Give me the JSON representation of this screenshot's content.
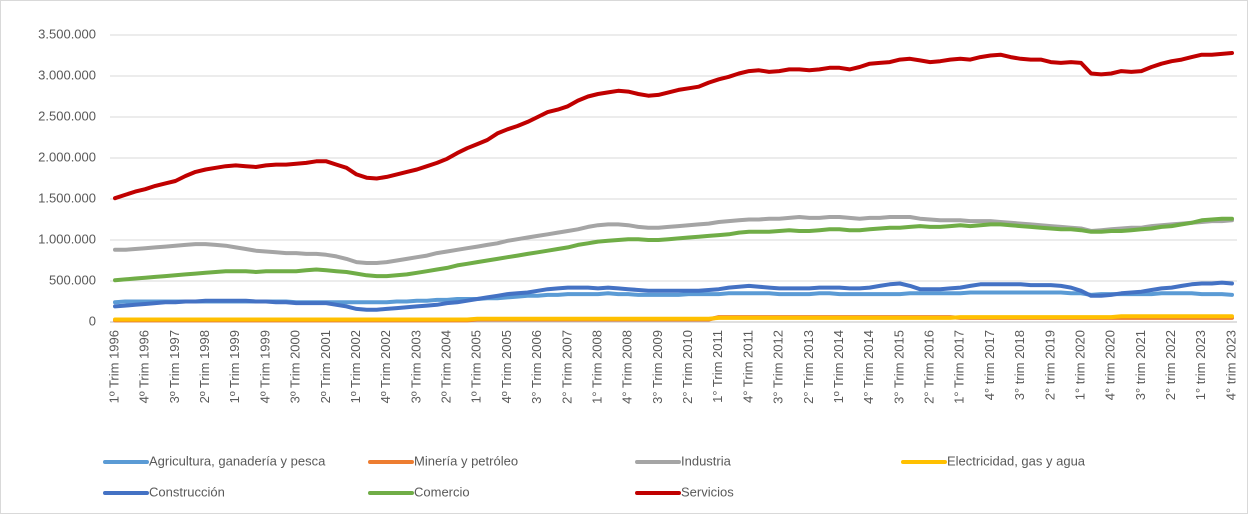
{
  "chart_data": {
    "type": "line",
    "categories": [
      "1º Trim 1996",
      null,
      null,
      "4º Trim 1996",
      null,
      null,
      "3º Trim 1997",
      null,
      null,
      "2º Trim 1998",
      null,
      null,
      "1º Trim 1999",
      null,
      null,
      "4º Trim 1999",
      null,
      null,
      "3º Trim 2000",
      null,
      null,
      "2º Trim 2001",
      null,
      null,
      "1º Trim 2002",
      null,
      null,
      "4º Trim 2002",
      null,
      null,
      "3º Trim 2003",
      null,
      null,
      "2º Trim 2004",
      null,
      null,
      "1º Trim 2005",
      null,
      null,
      "4º Trim 2005",
      null,
      null,
      "3° Trim 2006",
      null,
      null,
      "2° Trim 2007",
      null,
      null,
      "1° Trim 2008",
      null,
      null,
      "4° Trim 2008",
      null,
      null,
      "3° Trim 2009",
      null,
      null,
      "2° Trim 2010",
      null,
      null,
      "1° Trim 2011",
      null,
      null,
      "4° Trim 2011",
      null,
      null,
      "3° Trim 2012",
      null,
      null,
      "2° Trim 2013",
      null,
      null,
      "1º Trim 2014",
      null,
      null,
      "4° Trim 2014",
      null,
      null,
      "3° Trim 2015",
      null,
      null,
      "2° Trim 2016",
      null,
      null,
      "1° Trim 2017",
      null,
      null,
      "4° trim 2017",
      null,
      null,
      "3° trim 2018",
      null,
      null,
      "2° trim 2019",
      null,
      null,
      "1° trim 2020",
      null,
      null,
      "4° trim 2020",
      null,
      null,
      "3° trim 2021",
      null,
      null,
      "2° trim 2022",
      null,
      null,
      "1° trim 2023",
      null,
      null,
      "4° trim 2023"
    ],
    "ylim": [
      0,
      3500000
    ],
    "yticks": [
      0,
      {
        "value": 500000,
        "label": "500.000"
      },
      {
        "value": 1000000,
        "label": "1.000.000"
      },
      {
        "value": 1500000,
        "label": "1.500.000"
      },
      {
        "value": 2000000,
        "label": "2.000.000"
      },
      {
        "value": 2500000,
        "label": "2.500.000"
      },
      {
        "value": 3000000,
        "label": "3.000.000"
      },
      {
        "value": 3500000,
        "label": "3.500.000"
      }
    ],
    "grid": true,
    "legend": "bottom",
    "series": [
      {
        "name": "Agricultura, ganadería y pesca",
        "color": "#5b9bd5",
        "values": [
          240000,
          250000,
          250000,
          250000,
          250000,
          250000,
          250000,
          250000,
          250000,
          250000,
          250000,
          250000,
          250000,
          250000,
          250000,
          250000,
          250000,
          250000,
          240000,
          240000,
          240000,
          240000,
          240000,
          240000,
          240000,
          240000,
          240000,
          240000,
          250000,
          250000,
          260000,
          260000,
          270000,
          270000,
          280000,
          280000,
          280000,
          290000,
          290000,
          300000,
          310000,
          320000,
          320000,
          330000,
          330000,
          340000,
          340000,
          340000,
          340000,
          350000,
          340000,
          340000,
          330000,
          330000,
          330000,
          330000,
          330000,
          340000,
          340000,
          340000,
          340000,
          350000,
          350000,
          350000,
          350000,
          350000,
          340000,
          340000,
          340000,
          340000,
          350000,
          350000,
          340000,
          340000,
          340000,
          340000,
          340000,
          340000,
          340000,
          350000,
          350000,
          350000,
          350000,
          350000,
          350000,
          360000,
          360000,
          360000,
          360000,
          360000,
          360000,
          360000,
          360000,
          360000,
          360000,
          350000,
          350000,
          330000,
          340000,
          340000,
          340000,
          340000,
          340000,
          340000,
          350000,
          350000,
          350000,
          350000,
          340000,
          340000,
          340000,
          330000
        ]
      },
      {
        "name": "Minería y petróleo",
        "color": "#ed7d31",
        "values": [
          20000,
          20000,
          20000,
          20000,
          20000,
          20000,
          20000,
          20000,
          20000,
          20000,
          20000,
          20000,
          20000,
          20000,
          20000,
          20000,
          20000,
          20000,
          20000,
          20000,
          20000,
          20000,
          20000,
          20000,
          20000,
          20000,
          20000,
          20000,
          20000,
          20000,
          20000,
          20000,
          20000,
          20000,
          20000,
          20000,
          30000,
          30000,
          30000,
          30000,
          30000,
          30000,
          30000,
          30000,
          30000,
          30000,
          30000,
          30000,
          30000,
          30000,
          30000,
          30000,
          30000,
          30000,
          30000,
          30000,
          30000,
          30000,
          30000,
          30000,
          60000,
          60000,
          60000,
          60000,
          60000,
          60000,
          60000,
          60000,
          60000,
          60000,
          60000,
          60000,
          60000,
          60000,
          60000,
          60000,
          60000,
          60000,
          60000,
          60000,
          60000,
          60000,
          60000,
          60000,
          50000,
          50000,
          50000,
          50000,
          50000,
          50000,
          50000,
          50000,
          50000,
          50000,
          50000,
          50000,
          50000,
          50000,
          50000,
          50000,
          50000,
          50000,
          50000,
          50000,
          50000,
          50000,
          50000,
          50000,
          50000,
          50000,
          50000,
          50000
        ]
      },
      {
        "name": "Industria",
        "color": "#a5a5a5",
        "values": [
          880000,
          880000,
          890000,
          900000,
          910000,
          920000,
          930000,
          940000,
          950000,
          950000,
          940000,
          930000,
          910000,
          890000,
          870000,
          860000,
          850000,
          840000,
          840000,
          830000,
          830000,
          820000,
          800000,
          770000,
          730000,
          720000,
          720000,
          730000,
          750000,
          770000,
          790000,
          810000,
          840000,
          860000,
          880000,
          900000,
          920000,
          940000,
          960000,
          990000,
          1010000,
          1030000,
          1050000,
          1070000,
          1090000,
          1110000,
          1130000,
          1160000,
          1180000,
          1190000,
          1190000,
          1180000,
          1160000,
          1150000,
          1150000,
          1160000,
          1170000,
          1180000,
          1190000,
          1200000,
          1220000,
          1230000,
          1240000,
          1250000,
          1250000,
          1260000,
          1260000,
          1270000,
          1280000,
          1270000,
          1270000,
          1280000,
          1280000,
          1270000,
          1260000,
          1270000,
          1270000,
          1280000,
          1280000,
          1280000,
          1260000,
          1250000,
          1240000,
          1240000,
          1240000,
          1230000,
          1230000,
          1230000,
          1220000,
          1210000,
          1200000,
          1190000,
          1180000,
          1170000,
          1160000,
          1150000,
          1140000,
          1110000,
          1120000,
          1130000,
          1140000,
          1150000,
          1150000,
          1170000,
          1180000,
          1190000,
          1200000,
          1210000,
          1220000,
          1230000,
          1230000,
          1240000
        ]
      },
      {
        "name": "Electricidad, gas y agua",
        "color": "#ffc000",
        "values": [
          30000,
          30000,
          30000,
          30000,
          30000,
          30000,
          30000,
          30000,
          30000,
          30000,
          30000,
          30000,
          30000,
          30000,
          30000,
          30000,
          30000,
          30000,
          30000,
          30000,
          30000,
          30000,
          30000,
          30000,
          30000,
          30000,
          30000,
          30000,
          30000,
          30000,
          30000,
          30000,
          30000,
          30000,
          30000,
          30000,
          40000,
          40000,
          40000,
          40000,
          40000,
          40000,
          40000,
          40000,
          40000,
          40000,
          40000,
          40000,
          40000,
          40000,
          40000,
          40000,
          40000,
          40000,
          40000,
          40000,
          40000,
          40000,
          40000,
          40000,
          50000,
          50000,
          50000,
          50000,
          50000,
          50000,
          50000,
          50000,
          50000,
          50000,
          50000,
          50000,
          50000,
          50000,
          50000,
          50000,
          50000,
          50000,
          50000,
          50000,
          50000,
          50000,
          50000,
          50000,
          60000,
          60000,
          60000,
          60000,
          60000,
          60000,
          60000,
          60000,
          60000,
          60000,
          60000,
          60000,
          60000,
          60000,
          60000,
          60000,
          70000,
          70000,
          70000,
          70000,
          70000,
          70000,
          70000,
          70000,
          70000,
          70000,
          70000,
          70000
        ]
      },
      {
        "name": "Construcción",
        "color": "#4472c4",
        "values": [
          190000,
          200000,
          210000,
          220000,
          230000,
          240000,
          240000,
          250000,
          250000,
          260000,
          260000,
          260000,
          260000,
          260000,
          250000,
          250000,
          240000,
          240000,
          230000,
          230000,
          230000,
          230000,
          210000,
          190000,
          160000,
          150000,
          150000,
          160000,
          170000,
          180000,
          190000,
          200000,
          210000,
          230000,
          240000,
          260000,
          280000,
          300000,
          320000,
          340000,
          350000,
          360000,
          380000,
          400000,
          410000,
          420000,
          420000,
          420000,
          410000,
          420000,
          410000,
          400000,
          390000,
          380000,
          380000,
          380000,
          380000,
          380000,
          380000,
          390000,
          400000,
          420000,
          430000,
          440000,
          430000,
          420000,
          410000,
          410000,
          410000,
          410000,
          420000,
          420000,
          420000,
          410000,
          410000,
          420000,
          440000,
          460000,
          470000,
          440000,
          400000,
          400000,
          400000,
          410000,
          420000,
          440000,
          460000,
          460000,
          460000,
          460000,
          460000,
          450000,
          450000,
          450000,
          440000,
          420000,
          380000,
          320000,
          320000,
          330000,
          350000,
          360000,
          370000,
          390000,
          410000,
          420000,
          440000,
          460000,
          470000,
          470000,
          480000,
          470000
        ]
      },
      {
        "name": "Comercio",
        "color": "#70ad47",
        "values": [
          510000,
          520000,
          530000,
          540000,
          550000,
          560000,
          570000,
          580000,
          590000,
          600000,
          610000,
          620000,
          620000,
          620000,
          610000,
          620000,
          620000,
          620000,
          620000,
          630000,
          640000,
          630000,
          620000,
          610000,
          590000,
          570000,
          560000,
          560000,
          570000,
          580000,
          600000,
          620000,
          640000,
          660000,
          690000,
          710000,
          730000,
          750000,
          770000,
          790000,
          810000,
          830000,
          850000,
          870000,
          890000,
          910000,
          940000,
          960000,
          980000,
          990000,
          1000000,
          1010000,
          1010000,
          1000000,
          1000000,
          1010000,
          1020000,
          1030000,
          1040000,
          1050000,
          1060000,
          1070000,
          1090000,
          1100000,
          1100000,
          1100000,
          1110000,
          1120000,
          1110000,
          1110000,
          1120000,
          1130000,
          1130000,
          1120000,
          1120000,
          1130000,
          1140000,
          1150000,
          1150000,
          1160000,
          1170000,
          1160000,
          1160000,
          1170000,
          1180000,
          1170000,
          1180000,
          1190000,
          1190000,
          1180000,
          1170000,
          1160000,
          1150000,
          1140000,
          1130000,
          1130000,
          1120000,
          1100000,
          1100000,
          1110000,
          1110000,
          1120000,
          1130000,
          1140000,
          1160000,
          1170000,
          1190000,
          1210000,
          1240000,
          1250000,
          1260000,
          1260000
        ]
      },
      {
        "name": "Servicios",
        "color": "#c00000",
        "values": [
          1510000,
          1550000,
          1590000,
          1620000,
          1660000,
          1690000,
          1720000,
          1780000,
          1830000,
          1860000,
          1880000,
          1900000,
          1910000,
          1900000,
          1890000,
          1910000,
          1920000,
          1920000,
          1930000,
          1940000,
          1960000,
          1960000,
          1920000,
          1880000,
          1800000,
          1760000,
          1750000,
          1770000,
          1800000,
          1830000,
          1860000,
          1900000,
          1940000,
          1990000,
          2060000,
          2120000,
          2170000,
          2220000,
          2300000,
          2350000,
          2390000,
          2440000,
          2500000,
          2560000,
          2590000,
          2630000,
          2700000,
          2750000,
          2780000,
          2800000,
          2820000,
          2810000,
          2780000,
          2760000,
          2770000,
          2800000,
          2830000,
          2850000,
          2870000,
          2920000,
          2960000,
          2990000,
          3030000,
          3060000,
          3070000,
          3050000,
          3060000,
          3080000,
          3080000,
          3070000,
          3080000,
          3100000,
          3100000,
          3080000,
          3110000,
          3150000,
          3160000,
          3170000,
          3200000,
          3210000,
          3190000,
          3170000,
          3180000,
          3200000,
          3210000,
          3200000,
          3230000,
          3250000,
          3260000,
          3230000,
          3210000,
          3200000,
          3200000,
          3170000,
          3160000,
          3170000,
          3160000,
          3030000,
          3020000,
          3030000,
          3060000,
          3050000,
          3060000,
          3110000,
          3150000,
          3180000,
          3200000,
          3230000,
          3260000,
          3260000,
          3270000,
          3280000
        ]
      }
    ]
  }
}
